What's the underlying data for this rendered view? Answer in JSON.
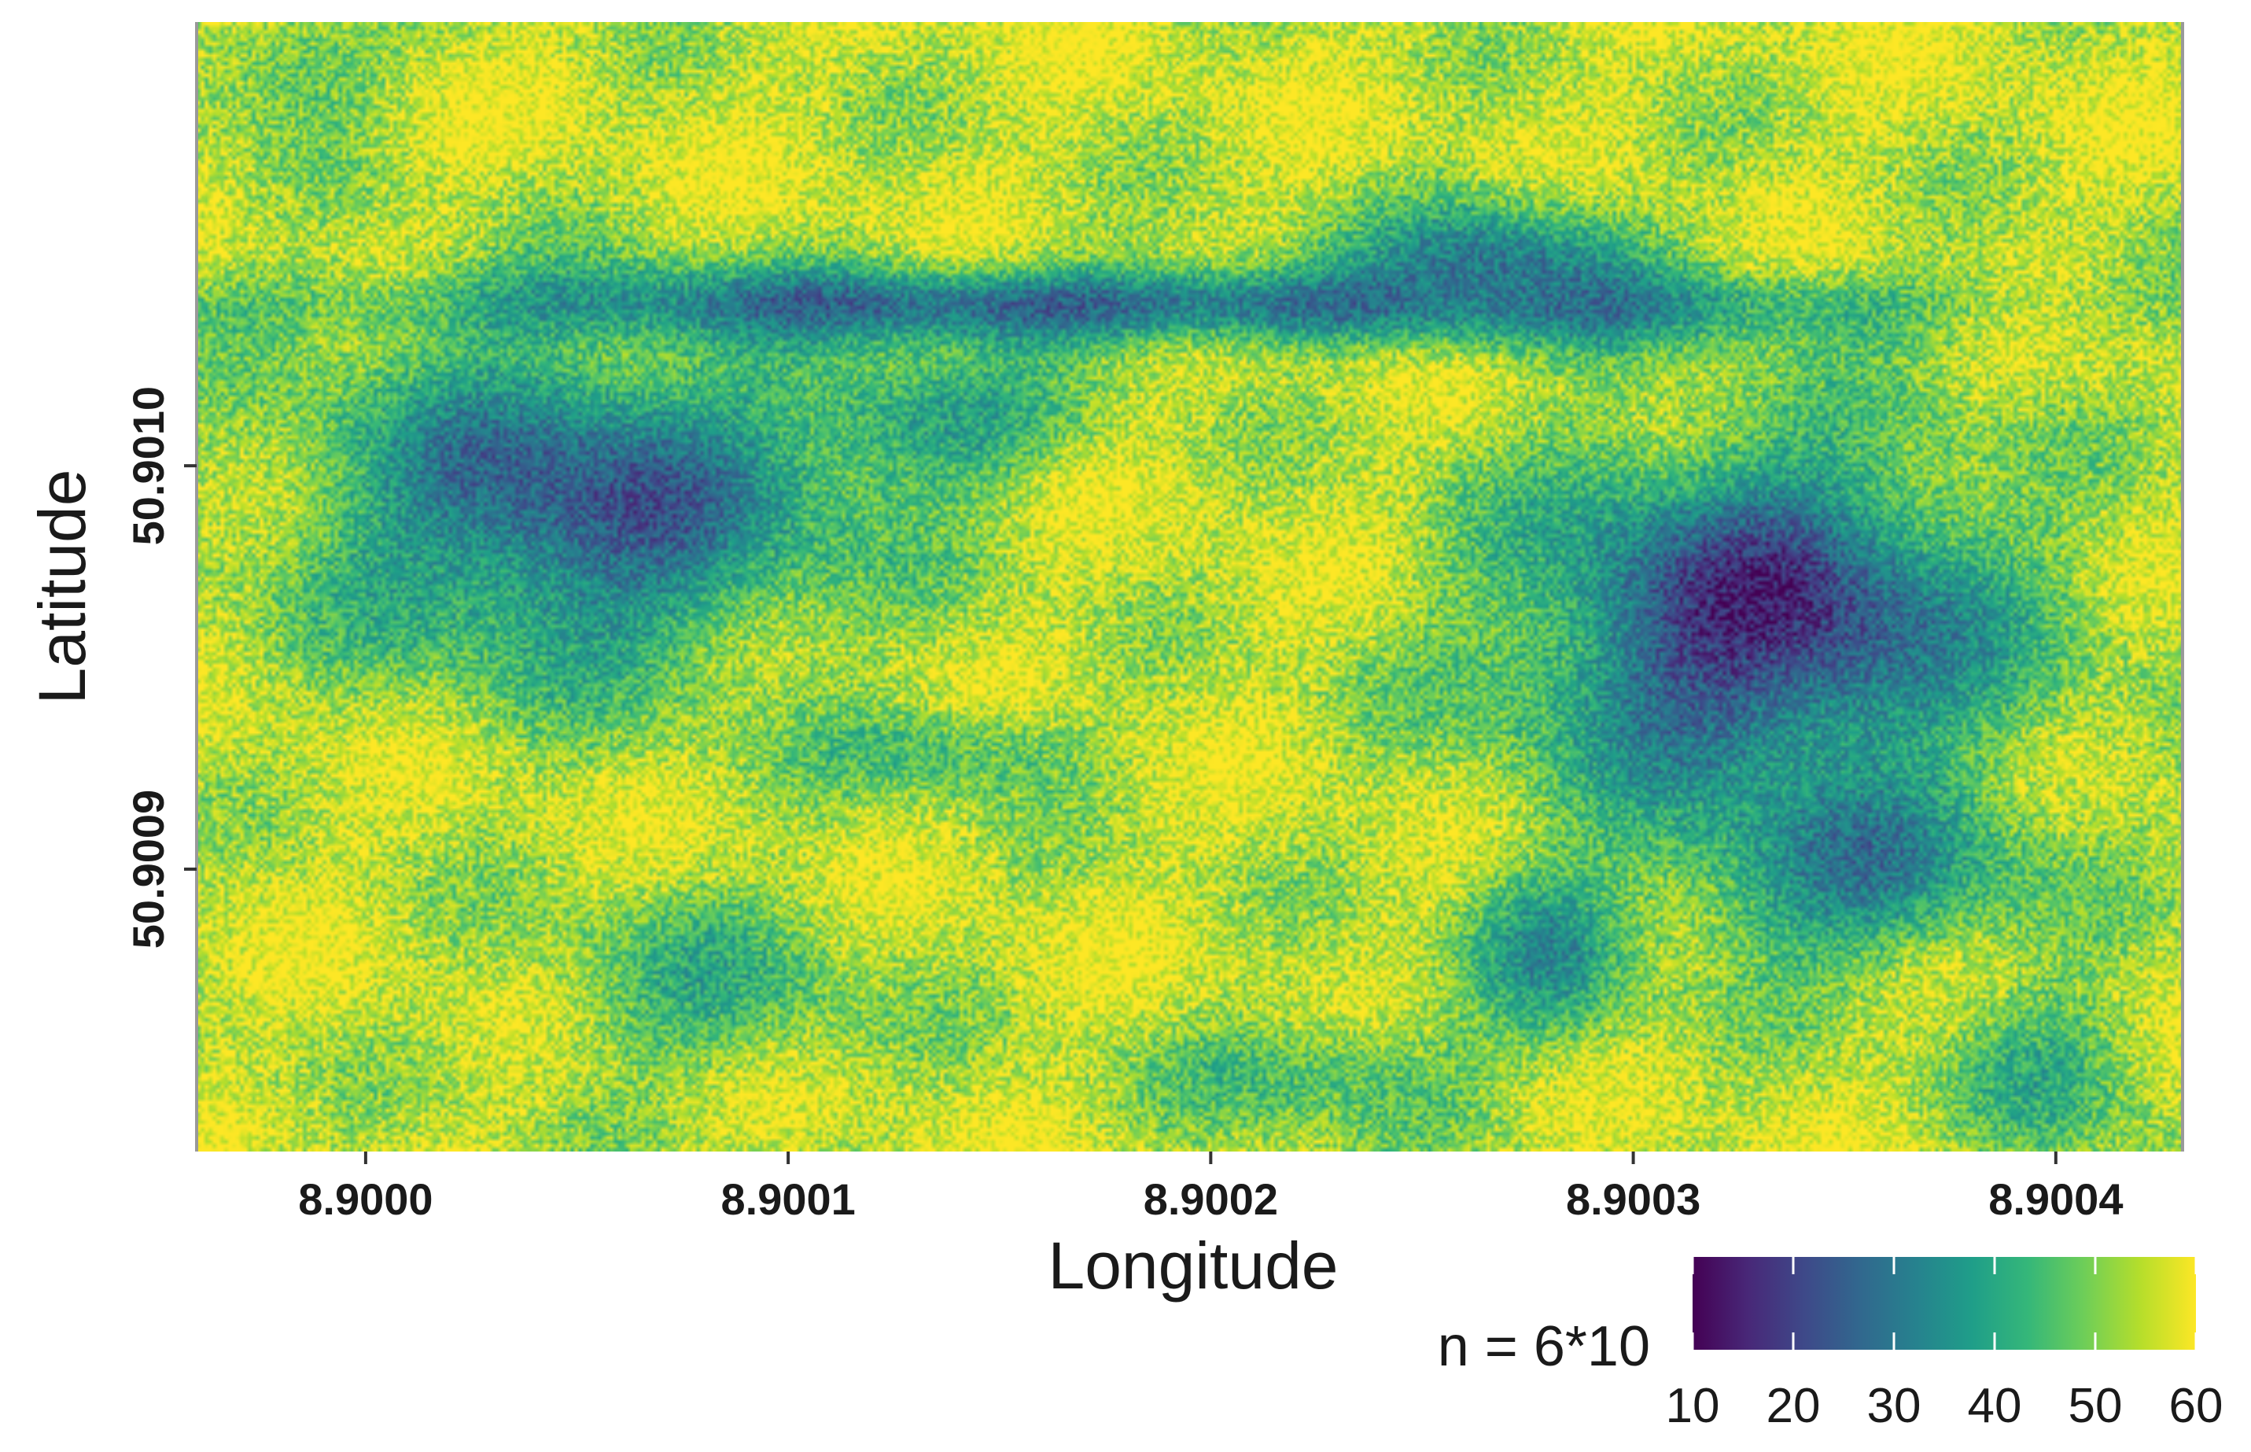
{
  "chart_data": {
    "type": "heatmap",
    "title": "",
    "xlabel": "Longitude",
    "ylabel": "Latitude",
    "xlim": [
      8.89996,
      8.90043
    ],
    "ylim": [
      50.90083,
      50.90111
    ],
    "x_ticks": [
      8.9,
      8.9001,
      8.9002,
      8.9003,
      8.9004
    ],
    "x_tick_labels": [
      "8.9000",
      "8.9001",
      "8.9002",
      "8.9003",
      "8.9004"
    ],
    "y_ticks": [
      50.9009,
      50.901
    ],
    "y_tick_labels": [
      "50.9009",
      "50.9010"
    ],
    "grid": false,
    "colorscale": "viridis",
    "legend": {
      "title": "n = 6*10",
      "placement": "bottom-right",
      "min": 10,
      "max": 60,
      "ticks": [
        10,
        20,
        30,
        40,
        50,
        60
      ],
      "tick_labels": [
        "10",
        "20",
        "30",
        "40",
        "50",
        "60"
      ],
      "colors": [
        "#440154",
        "#482878",
        "#3e4989",
        "#31688e",
        "#26828e",
        "#1f9e89",
        "#35b779",
        "#6ece58",
        "#b5de2b",
        "#fde725"
      ]
    },
    "regions": [
      {
        "x": 8.90018,
        "y": 50.90104,
        "rx": 0.00022,
        "ry": 1.2e-05,
        "value": 26
      },
      {
        "x": 8.90005,
        "y": 50.90099,
        "rx": 7.5e-05,
        "ry": 5e-05,
        "value": 24
      },
      {
        "x": 8.90033,
        "y": 50.90096,
        "rx": 7e-05,
        "ry": 5.5e-05,
        "value": 17
      },
      {
        "x": 8.90027,
        "y": 50.90105,
        "rx": 4e-05,
        "ry": 2.2e-05,
        "value": 30
      },
      {
        "x": 8.90035,
        "y": 50.9009,
        "rx": 5e-05,
        "ry": 3e-05,
        "value": 32
      },
      {
        "x": 8.90028,
        "y": 50.90088,
        "rx": 2.5e-05,
        "ry": 3e-05,
        "value": 38
      },
      {
        "x": 8.90013,
        "y": 50.90101,
        "rx": 4e-05,
        "ry": 2e-05,
        "value": 36
      },
      {
        "x": 8.90008,
        "y": 50.90087,
        "rx": 5e-05,
        "ry": 3e-05,
        "value": 44
      },
      {
        "x": 8.90023,
        "y": 50.90085,
        "rx": 5e-05,
        "ry": 2e-05,
        "value": 44
      },
      {
        "x": 8.90014,
        "y": 50.90093,
        "rx": 4e-05,
        "ry": 1.5e-05,
        "value": 44
      },
      {
        "x": 8.89998,
        "y": 50.9011,
        "rx": 3e-05,
        "ry": 2e-05,
        "value": 44
      },
      {
        "x": 8.9004,
        "y": 50.90085,
        "rx": 3e-05,
        "ry": 3e-05,
        "value": 44
      }
    ]
  }
}
